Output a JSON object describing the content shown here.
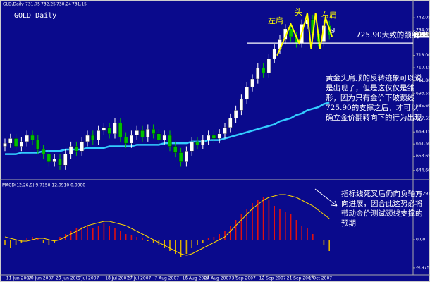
{
  "chart_data": {
    "type": "candlestick",
    "header": "GLD,Daily",
    "ohlc_header": [
      731.75,
      732.25,
      730.24,
      731.15
    ],
    "title": "GOLD Daily",
    "categories": [
      null,
      "11 Jun 2007",
      null,
      null,
      null,
      "20 Jun 2007",
      null,
      null,
      null,
      null,
      "29 Jun 2007",
      null,
      null,
      null,
      "9 Jul 2007",
      null,
      null,
      null,
      null,
      "18 Jul 2007",
      null,
      null,
      null,
      "27 Jul 2007",
      null,
      null,
      null,
      null,
      "7 Aug 2007",
      null,
      null,
      null,
      null,
      "16 Aug 2007",
      null,
      null,
      null,
      "24 Aug 2007",
      null,
      null,
      null,
      null,
      "3 Sep 2007",
      null,
      null,
      null,
      null,
      "12 Sep 2007",
      null,
      null,
      null,
      null,
      "21 Sep 2007",
      null,
      null,
      null,
      "1 Oct 2007",
      null,
      null,
      null
    ],
    "open": [
      660,
      662,
      665,
      660,
      663,
      667,
      664,
      658,
      655,
      650,
      652,
      648,
      655,
      660,
      657,
      663,
      667,
      664,
      670,
      672,
      668,
      675,
      666,
      662,
      667,
      670,
      666,
      671,
      668,
      664,
      667,
      660,
      656,
      650,
      657,
      663,
      661,
      664,
      667,
      665,
      668,
      672,
      678,
      683,
      690,
      698,
      703,
      710,
      707,
      716,
      722,
      728,
      735,
      730,
      726,
      738,
      741,
      732,
      727,
      737
    ],
    "high": [
      665,
      668,
      668,
      666,
      670,
      670,
      667,
      661,
      658,
      655,
      655,
      658,
      663,
      663,
      666,
      670,
      670,
      673,
      675,
      675,
      678,
      678,
      669,
      670,
      673,
      673,
      674,
      674,
      671,
      670,
      670,
      663,
      659,
      660,
      666,
      666,
      667,
      670,
      670,
      671,
      675,
      681,
      686,
      693,
      701,
      706,
      713,
      713,
      719,
      725,
      731,
      738,
      738,
      733,
      741,
      744,
      744,
      735,
      740,
      740
    ],
    "low": [
      657,
      659,
      657,
      657,
      660,
      661,
      655,
      652,
      647,
      647,
      645,
      645,
      652,
      654,
      654,
      660,
      661,
      661,
      667,
      665,
      665,
      663,
      659,
      659,
      664,
      663,
      663,
      665,
      661,
      661,
      657,
      653,
      647,
      647,
      654,
      658,
      658,
      661,
      662,
      662,
      665,
      669,
      675,
      680,
      687,
      695,
      700,
      704,
      704,
      713,
      719,
      725,
      727,
      723,
      723,
      735,
      729,
      724,
      724,
      728
    ],
    "close": [
      662,
      665,
      660,
      663,
      667,
      664,
      658,
      655,
      650,
      652,
      648,
      655,
      660,
      657,
      663,
      667,
      664,
      670,
      672,
      668,
      675,
      666,
      662,
      667,
      670,
      666,
      671,
      668,
      664,
      667,
      660,
      656,
      650,
      657,
      663,
      661,
      664,
      667,
      665,
      668,
      672,
      678,
      683,
      690,
      698,
      703,
      710,
      707,
      716,
      722,
      728,
      735,
      730,
      726,
      738,
      741,
      732,
      727,
      737,
      731
    ],
    "up_color": "#ffffff",
    "down_color": "#00c000",
    "ma": {
      "color": "#33ccff",
      "values": [
        655,
        655,
        655,
        656,
        656,
        656,
        656,
        657,
        657,
        657,
        657,
        658,
        658,
        658,
        658,
        659,
        659,
        659,
        659,
        660,
        660,
        660,
        660,
        660,
        661,
        661,
        661,
        661,
        661,
        662,
        662,
        662,
        662,
        662,
        663,
        663,
        663,
        664,
        664,
        664,
        665,
        666,
        667,
        668,
        669,
        670,
        671,
        672,
        673,
        674,
        676,
        677,
        678,
        680,
        681,
        683,
        684,
        685,
        687,
        688
      ]
    },
    "pattern": {
      "color": "#ffff00",
      "x": [
        49.5,
        52,
        53.5,
        55,
        55.7,
        56.5,
        57.3,
        58.3,
        59.5
      ],
      "values": [
        718,
        738,
        726,
        745,
        722,
        745,
        722,
        742,
        730
      ]
    },
    "shoulder_labels": [
      "左肩",
      "头",
      "右肩"
    ],
    "neckline": 725.9,
    "neckline_label": "725.90大致的颈线",
    "note_price": "黄金头肩顶的反转迹象可以说是出现了，但是这仅仅是雏形，因为只有金价下破颈线725.90的支撑之后，才可以确立金价翻转向下的行为出现",
    "ylim": [
      640,
      748
    ],
    "yticks": [
      {
        "value": 644.6,
        "label": "644.60"
      },
      {
        "value": 653.65,
        "label": "653.65"
      },
      {
        "value": 661.5,
        "label": "661.50"
      },
      {
        "value": 669.15,
        "label": "669.15"
      },
      {
        "value": 677.55,
        "label": "677.55"
      },
      {
        "value": 685.6,
        "label": "685.60"
      },
      {
        "value": 693.55,
        "label": "693.55"
      },
      {
        "value": 701.8,
        "label": "701.80"
      },
      {
        "value": 710.15,
        "label": "710.15"
      },
      {
        "value": 718,
        "label": "718.00"
      },
      {
        "value": 734.05,
        "label": "734.05"
      },
      {
        "value": 742.05,
        "label": "742.05"
      }
    ],
    "macd": {
      "title": "MACD(12,26,9) 9.7150 12.0910 0.0000",
      "hist_up_color": "#e01010",
      "hist_down_color": "#e0b000",
      "signal_color": "#ffd700",
      "hist": [
        -2,
        -3,
        -2,
        -1,
        0.5,
        1,
        0.5,
        -1,
        -2,
        -1,
        1,
        2,
        3,
        4,
        4.5,
        5,
        4,
        5,
        6,
        5,
        4,
        3,
        2,
        1.5,
        1,
        0.5,
        -0.5,
        -1,
        -2,
        -3,
        -4,
        -5,
        -6,
        -5,
        -3,
        -2,
        -1,
        0.5,
        1,
        2,
        3,
        5,
        7,
        9,
        11,
        13,
        14,
        15,
        14,
        12,
        11,
        10,
        9,
        7,
        5,
        4,
        2,
        0,
        -2,
        -4
      ],
      "signal": [
        1,
        0.5,
        0,
        -0.5,
        -0.5,
        0,
        0.5,
        0.5,
        0,
        -0.5,
        0,
        1,
        2,
        3,
        4,
        5,
        5.5,
        6,
        6.5,
        6.5,
        6,
        5.5,
        5,
        4,
        3,
        2,
        1,
        0,
        -1,
        -2,
        -3,
        -4,
        -5,
        -5.5,
        -5,
        -4,
        -3,
        -2,
        -1,
        0,
        1,
        3,
        5,
        7,
        9,
        11,
        12.5,
        14,
        15,
        15.5,
        16,
        16,
        15.5,
        15,
        14,
        13,
        12,
        10.5,
        9,
        7.5
      ],
      "y2lim": [
        -11.5,
        18
      ],
      "y2ticks": [
        16.2911,
        {
          "value": 0,
          "label": "0.00"
        },
        -9.9754
      ],
      "note": "指标线死叉后仍向负轴方向进展，因合此这势必将带动金价测试颈线支撑的预期"
    }
  }
}
